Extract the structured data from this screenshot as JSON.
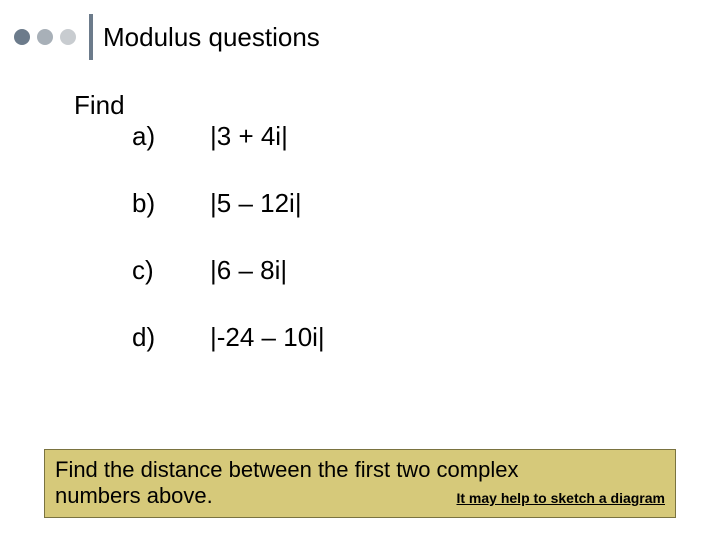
{
  "header": {
    "dots": [
      "#6c7b8b",
      "#a8b0b8",
      "#c8ccd0"
    ],
    "vbar_color": "#6c7b8b",
    "title": "Modulus questions"
  },
  "prompt": "Find",
  "questions": [
    {
      "label": "a)",
      "expr": "|3 + 4i|"
    },
    {
      "label": "b)",
      "expr": "|5 – 12i|"
    },
    {
      "label": "c)",
      "expr": "|6 – 8i|"
    },
    {
      "label": "d)",
      "expr": "|-24 – 10i|"
    }
  ],
  "footer": {
    "line1": "Find the distance between the first two complex",
    "line2_left": "numbers above.",
    "hint": "It may help to sketch a diagram",
    "bg_color": "#d6c97a",
    "border_color": "#7a7340"
  }
}
